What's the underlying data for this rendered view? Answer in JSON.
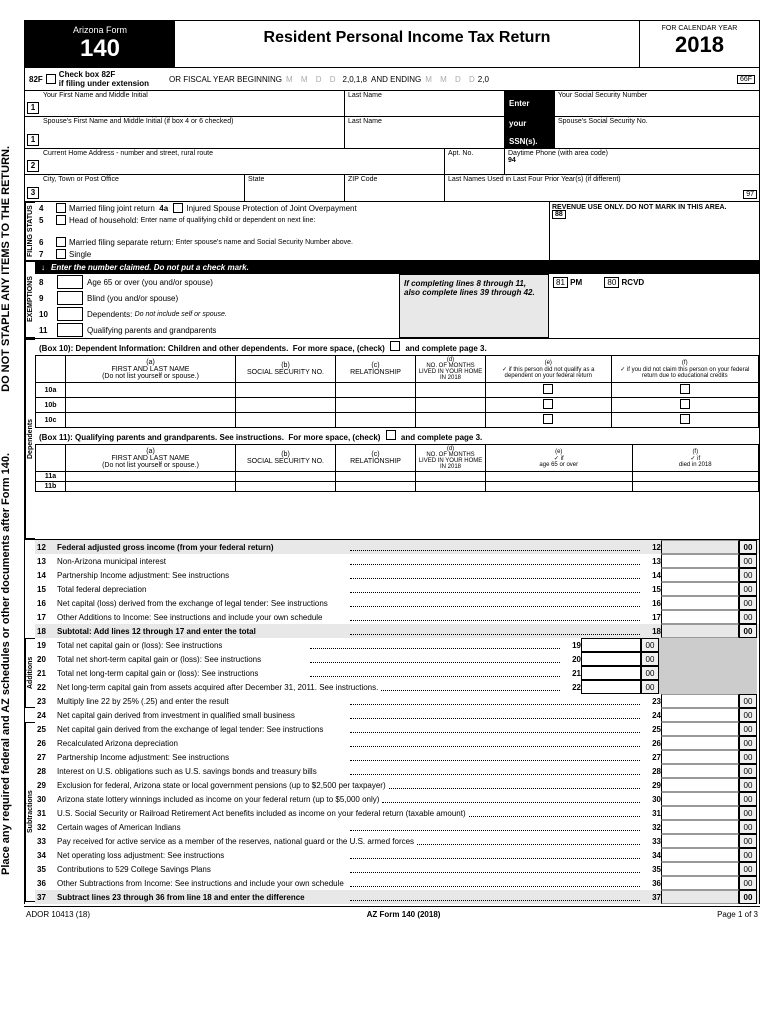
{
  "vertical_text_top": "DO NOT STAPLE ANY ITEMS TO THE RETURN.",
  "vertical_text_bottom": "Place any required federal and AZ schedules or other documents after Form 140.",
  "header": {
    "state": "Arizona Form",
    "formno": "140",
    "title": "Resident Personal Income Tax Return",
    "calendar_year_label": "FOR CALENDAR YEAR",
    "year": "2018"
  },
  "row82f": {
    "code": "82F",
    "check_label": "Check box 82F",
    "ext_label": "if filing under extension",
    "fiscal": "OR FISCAL YEAR BEGINNING",
    "fy1": "2,0,1,8",
    "and_ending": "AND ENDING",
    "fy2": "2,0",
    "code_right": "66F"
  },
  "namegrid": {
    "r1c1": "Your First Name and Middle Initial",
    "r1c2": "Last Name",
    "r1c3": "Your Social Security Number",
    "r2c1": "Spouse's First Name and Middle Initial (if box 4 or 6 checked)",
    "r2c2": "Last Name",
    "r2c3": "Spouse's Social Security No.",
    "r3c1": "Current Home Address - number and street, rural route",
    "r3c2": "Apt. No.",
    "r3c3": "Daytime Phone (with area code)",
    "r3c3_num": "94",
    "r4c1": "City, Town or Post Office",
    "r4c2": "State",
    "r4c3": "ZIP Code",
    "r4c4": "Last Names Used in Last Four Prior Year(s)  (if different)",
    "r4_num": "97",
    "ssns_enter": "Enter",
    "ssns_your": "your",
    "ssns_ssns": "SSN(s)."
  },
  "filing": {
    "side": "FILING STATUS",
    "l4": "Married filing joint return",
    "l4a_code": "4a",
    "l4a": "Injured Spouse Protection of Joint Overpayment",
    "l5": "Head of household:",
    "l5_sub": "Enter name of qualifying child or dependent on next line:",
    "l6": "Married filing separate return:",
    "l6_sub": "Enter spouse's name and Social Security Number above.",
    "l7": "Single",
    "revenue": "REVENUE USE ONLY. DO NOT MARK IN THIS AREA.",
    "rev88": "88"
  },
  "exempt": {
    "side": "EXEMPTIONS",
    "bar": "Enter the number claimed.  Do not put a check mark.",
    "l8": "Age 65 or over (you and/or spouse)",
    "l9": "Blind (you and/or spouse)",
    "l10": "Dependents:",
    "l10_sub": "Do not include self or spouse.",
    "l11": "Qualifying parents and grandparents",
    "callout": "If completing lines 8 through 11, also complete lines 39 through 42.",
    "pm81": "81",
    "pm": "PM",
    "rcvd80": "80",
    "rcvd": "RCVD"
  },
  "dep": {
    "side": "Dependents",
    "box10_hdr": "(Box 10):  Dependent Information:  Children and other dependents.",
    "more": "For more space, (check)",
    "complete": "and complete page 3.",
    "col_a": "(a)\nFIRST AND LAST NAME\n(Do not list yourself or spouse.)",
    "col_b": "(b)\nSOCIAL SECURITY NO.",
    "col_c": "(c)\nRELATIONSHIP",
    "col_d": "(d)\nNO. OF MONTHS LIVED IN YOUR HOME IN 2018",
    "col_e10": "(e)\n✓ if this person did not qualify as a dependent on your federal return",
    "col_f10": "(f)\n✓ if you did not claim this person on your federal return due to educational credits",
    "rows10": [
      "10a",
      "10b",
      "10c"
    ],
    "box11_hdr": "(Box 11):  Qualifying parents and grandparents.  See instructions.",
    "col_e11": "(e)\n✓ if\nage 65 or over",
    "col_f11": "(f)\n✓ if\ndied in 2018",
    "rows11": [
      "11a",
      "11b"
    ]
  },
  "sections": {
    "additions": "Additions",
    "subtractions": "Subtractions"
  },
  "lines": [
    {
      "n": "12",
      "d": "Federal adjusted gross income (from your federal return)",
      "shade": true,
      "r": "12",
      "amt": true
    },
    {
      "n": "13",
      "d": "Non-Arizona municipal interest",
      "r": "13",
      "amt": true
    },
    {
      "n": "14",
      "d": "Partnership Income adjustment:  See instructions",
      "r": "14",
      "amt": true
    },
    {
      "n": "15",
      "d": "Total federal depreciation",
      "r": "15",
      "amt": true
    },
    {
      "n": "16",
      "d": "Net capital (loss) derived from the exchange of legal tender: See instructions",
      "r": "16",
      "amt": true
    },
    {
      "n": "17",
      "d": "Other Additions to Income:  See instructions and include your own schedule",
      "r": "17",
      "amt": true
    },
    {
      "n": "18",
      "d": "Subtotal:  Add lines 12 through 17 and enter the total",
      "shade": true,
      "r": "18",
      "amt": true
    },
    {
      "n": "19",
      "d": "Total net capital gain or (loss):  See instructions",
      "r": "19",
      "mid": true
    },
    {
      "n": "20",
      "d": "Total net short-term capital gain or (loss):  See instructions",
      "r": "20",
      "mid": true
    },
    {
      "n": "21",
      "d": "Total net long-term capital gain or (loss):  See instructions",
      "r": "21",
      "mid": true
    },
    {
      "n": "22",
      "d": "Net long-term capital gain from assets acquired after December 31, 2011.  See instructions.",
      "r": "22",
      "mid": true
    },
    {
      "n": "23",
      "d": "Multiply line 22 by 25% (.25) and enter the result",
      "r": "23",
      "amt": true
    },
    {
      "n": "24",
      "d": "Net capital gain derived from investment in qualified small business",
      "r": "24",
      "amt": true
    },
    {
      "n": "25",
      "d": "Net capital gain derived from the exchange of legal tender: See instructions",
      "r": "25",
      "amt": true
    },
    {
      "n": "26",
      "d": "Recalculated Arizona depreciation",
      "r": "26",
      "amt": true
    },
    {
      "n": "27",
      "d": "Partnership Income adjustment:  See instructions",
      "r": "27",
      "amt": true
    },
    {
      "n": "28",
      "d": "Interest on U.S. obligations such as U.S. savings bonds and treasury bills",
      "r": "28",
      "amt": true
    },
    {
      "n": "29",
      "d": "Exclusion for federal, Arizona state or local government pensions (up to $2,500 per taxpayer)",
      "r": "29",
      "amt": true
    },
    {
      "n": "30",
      "d": "Arizona state lottery winnings included as income on your federal return (up to $5,000 only)",
      "r": "30",
      "amt": true
    },
    {
      "n": "31",
      "d": "U.S. Social Security or Railroad Retirement Act benefits included as income on your federal return (taxable amount)",
      "r": "31",
      "amt": true
    },
    {
      "n": "32",
      "d": "Certain wages of American Indians",
      "r": "32",
      "amt": true
    },
    {
      "n": "33",
      "d": "Pay received for active service as a member of the reserves, national guard or the U.S. armed forces",
      "r": "33",
      "amt": true
    },
    {
      "n": "34",
      "d": "Net operating loss adjustment: See instructions",
      "r": "34",
      "amt": true
    },
    {
      "n": "35",
      "d": "Contributions to 529 College Savings Plans",
      "r": "35",
      "amt": true
    },
    {
      "n": "36",
      "d": "Other Subtractions from Income:  See instructions and include your own schedule",
      "r": "36",
      "amt": true
    },
    {
      "n": "37",
      "d": "Subtract lines 23 through 36 from line 18 and enter the difference",
      "shade": true,
      "r": "37",
      "amt": true
    }
  ],
  "footer": {
    "left": "ADOR 10413 (18)",
    "mid": "AZ Form 140 (2018)",
    "right": "Page 1 of 3"
  },
  "cents": "00"
}
